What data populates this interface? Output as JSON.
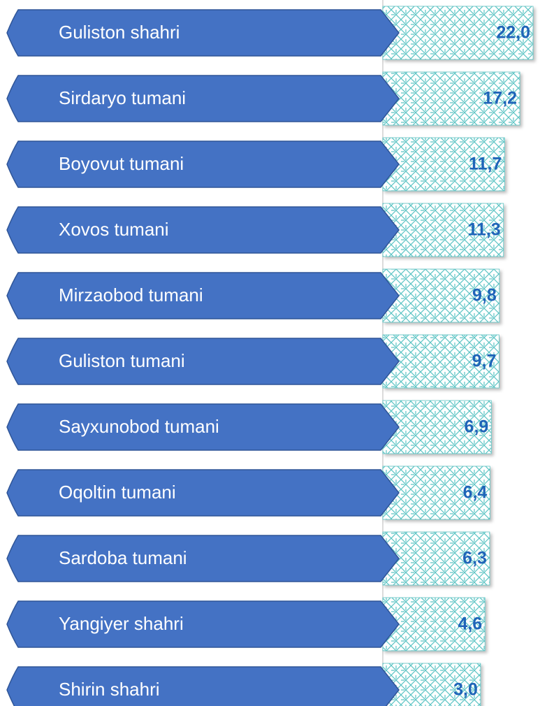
{
  "chart_data": {
    "type": "bar",
    "orientation": "horizontal",
    "categories": [
      "Guliston shahri",
      "Sirdaryo tumani",
      "Boyovut tumani",
      "Xovos tumani",
      "Mirzaobod tumani",
      "Guliston tumani",
      "Sayxunobod tumani",
      "Oqoltin tumani",
      "Sardoba tumani",
      "Yangiyer shahri",
      "Shirin shahri"
    ],
    "values": [
      22.0,
      17.2,
      11.7,
      11.3,
      9.8,
      9.7,
      6.9,
      6.4,
      6.3,
      4.6,
      3.0
    ],
    "value_labels": [
      "22,0",
      "17,2",
      "11,7",
      "11,3",
      "9,8",
      "9,7",
      "6,9",
      "6,4",
      "6,3",
      "4,6",
      "3,0"
    ],
    "color": "#5cc4c4",
    "label_color": "#4472c4",
    "value_label_color": "#1f64b8",
    "xlim": [
      0,
      24
    ]
  }
}
